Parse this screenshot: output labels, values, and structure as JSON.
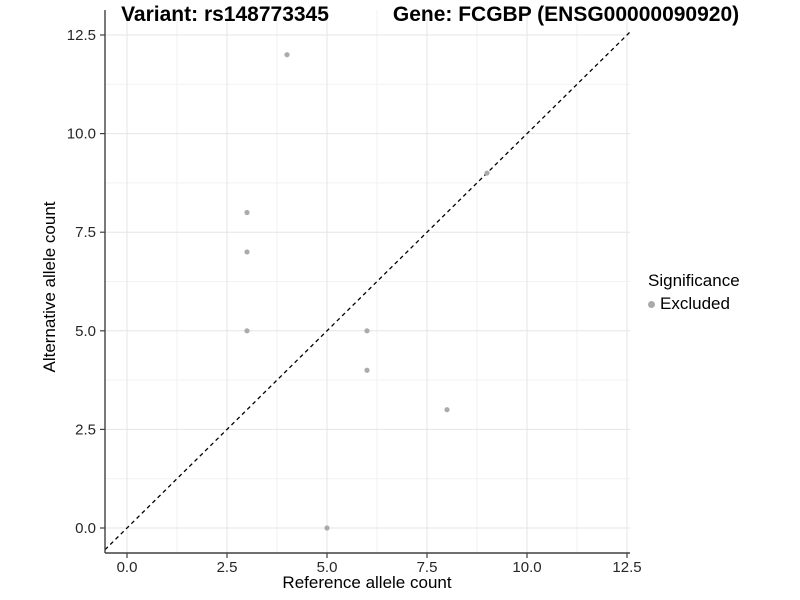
{
  "chart_data": {
    "type": "scatter",
    "title_left": "Variant: rs148773345",
    "title_right": "Gene: FCGBP (ENSG00000090920)",
    "xlabel": "Reference allele count",
    "ylabel": "Alternative allele count",
    "xlim": [
      0,
      12.5
    ],
    "ylim": [
      0,
      12.5
    ],
    "xticks": {
      "values": [
        0,
        2.5,
        5,
        7.5,
        10,
        12.5
      ],
      "labels": [
        "0.0",
        "2.5",
        "5.0",
        "7.5",
        "10.0",
        "12.5"
      ]
    },
    "yticks": {
      "values": [
        0,
        2.5,
        5,
        7.5,
        10,
        12.5
      ],
      "labels": [
        "0.0",
        "2.5",
        "5.0",
        "7.5",
        "10.0",
        "12.5"
      ]
    },
    "grid": "major+minor",
    "reference_line": {
      "kind": "identity y=x",
      "style": "dashed",
      "color": "#000000"
    },
    "series": [
      {
        "name": "Excluded",
        "color": "#ababab",
        "points": [
          [
            4,
            12
          ],
          [
            3,
            8
          ],
          [
            3,
            7
          ],
          [
            3,
            5
          ],
          [
            6,
            5
          ],
          [
            6,
            4
          ],
          [
            8,
            3
          ],
          [
            9,
            9
          ],
          [
            5,
            0
          ]
        ]
      }
    ],
    "legend": {
      "title": "Significance",
      "position": "right",
      "entries": [
        {
          "label": "Excluded",
          "color": "#ababab"
        }
      ]
    }
  },
  "style": {
    "background": "#ffffff",
    "axis_line": "#404040",
    "grid_major": "#e5e5e5",
    "grid_minor": "#f2f2f2",
    "tick_text": "#262626",
    "title_text": "#000000",
    "point_color": "#ababab",
    "reference_line": "#000000"
  }
}
